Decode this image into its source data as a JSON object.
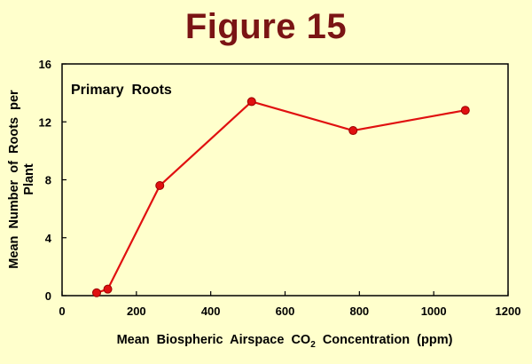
{
  "figure_title": "Figure 15",
  "colors": {
    "background": "#FFFFCC",
    "title": "#7A1414",
    "series_line": "#E01010",
    "marker_fill": "#E01010",
    "marker_edge": "#9A0000",
    "axis": "#000000"
  },
  "chart_data": {
    "type": "line",
    "title": "",
    "annotation": "Primary  Roots",
    "xlabel": "Mean  Biospheric  Airspace  CO",
    "xlabel_subscript": "2",
    "xlabel_suffix": "  Concentration  (ppm)",
    "ylabel_line1": "Mean  Number  of  Roots  per",
    "ylabel_line2": "Plant",
    "xlim": [
      0,
      1200
    ],
    "ylim": [
      0,
      16
    ],
    "x_ticks": [
      0,
      200,
      400,
      600,
      800,
      1000,
      1200
    ],
    "y_ticks": [
      0,
      4,
      8,
      12,
      16
    ],
    "grid": false,
    "series": [
      {
        "x": [
          93,
          123,
          263,
          510,
          783,
          1085
        ],
        "y": [
          0.2,
          0.45,
          7.6,
          13.4,
          11.4,
          12.8
        ]
      }
    ]
  }
}
